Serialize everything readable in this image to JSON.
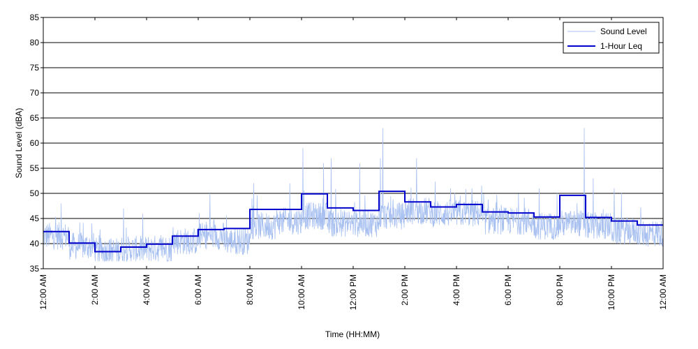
{
  "chart_data": {
    "type": "line",
    "title": "",
    "xlabel": "Time (HH:MM)",
    "ylabel": "Sound Level (dBA)",
    "ylim": [
      35,
      85
    ],
    "xlim_hours": [
      0,
      24
    ],
    "grid": "horizontal",
    "legend_position": "top-right",
    "y_ticks": [
      35,
      40,
      45,
      50,
      55,
      60,
      65,
      70,
      75,
      80,
      85
    ],
    "x_tick_labels": [
      "12:00 AM",
      "2:00 AM",
      "4:00 AM",
      "6:00 AM",
      "8:00 AM",
      "10:00 AM",
      "12:00 PM",
      "2:00 PM",
      "4:00 PM",
      "6:00 PM",
      "8:00 PM",
      "10:00 PM",
      "12:00 AM"
    ],
    "x_tick_hours": [
      0,
      2,
      4,
      6,
      8,
      10,
      12,
      14,
      16,
      18,
      20,
      22,
      24
    ],
    "series": [
      {
        "name": "Sound Level",
        "color": "#a8c0f0",
        "style": "thin-noisy-line",
        "hourly_baseline": [
          41.5,
          39.5,
          38.5,
          38.8,
          39.0,
          40.5,
          41.5,
          40.5,
          43.5,
          44.5,
          45.5,
          44.0,
          44.0,
          45.5,
          46.5,
          46.0,
          46.0,
          44.5,
          44.5,
          43.5,
          44.0,
          43.5,
          42.5,
          42.0
        ],
        "spikes": [
          {
            "hour": 10.05,
            "value": 59
          },
          {
            "hour": 10.85,
            "value": 56
          },
          {
            "hour": 11.15,
            "value": 57
          },
          {
            "hour": 12.25,
            "value": 56
          },
          {
            "hour": 13.15,
            "value": 63
          },
          {
            "hour": 13.05,
            "value": 57
          },
          {
            "hour": 14.45,
            "value": 57
          },
          {
            "hour": 9.55,
            "value": 52
          },
          {
            "hour": 8.15,
            "value": 52
          },
          {
            "hour": 6.45,
            "value": 50
          },
          {
            "hour": 3.1,
            "value": 47
          },
          {
            "hour": 0.7,
            "value": 48
          },
          {
            "hour": 20.95,
            "value": 63
          },
          {
            "hour": 21.3,
            "value": 53
          },
          {
            "hour": 22.1,
            "value": 51
          },
          {
            "hour": 16.6,
            "value": 51
          },
          {
            "hour": 19.2,
            "value": 51
          }
        ]
      },
      {
        "name": "1-Hour Leq",
        "color": "#0000cc",
        "style": "step",
        "hour_starts": [
          0,
          1,
          2,
          3,
          4,
          5,
          6,
          7,
          8,
          9,
          10,
          11,
          12,
          13,
          14,
          15,
          16,
          17,
          18,
          19,
          20,
          21,
          22,
          23
        ],
        "values": [
          42.4,
          40.1,
          38.4,
          39.3,
          39.9,
          41.5,
          42.8,
          43.0,
          46.8,
          46.8,
          49.9,
          47.1,
          46.6,
          50.4,
          48.3,
          47.3,
          47.8,
          46.3,
          46.1,
          45.3,
          49.6,
          45.2,
          44.5,
          43.7
        ]
      }
    ]
  }
}
